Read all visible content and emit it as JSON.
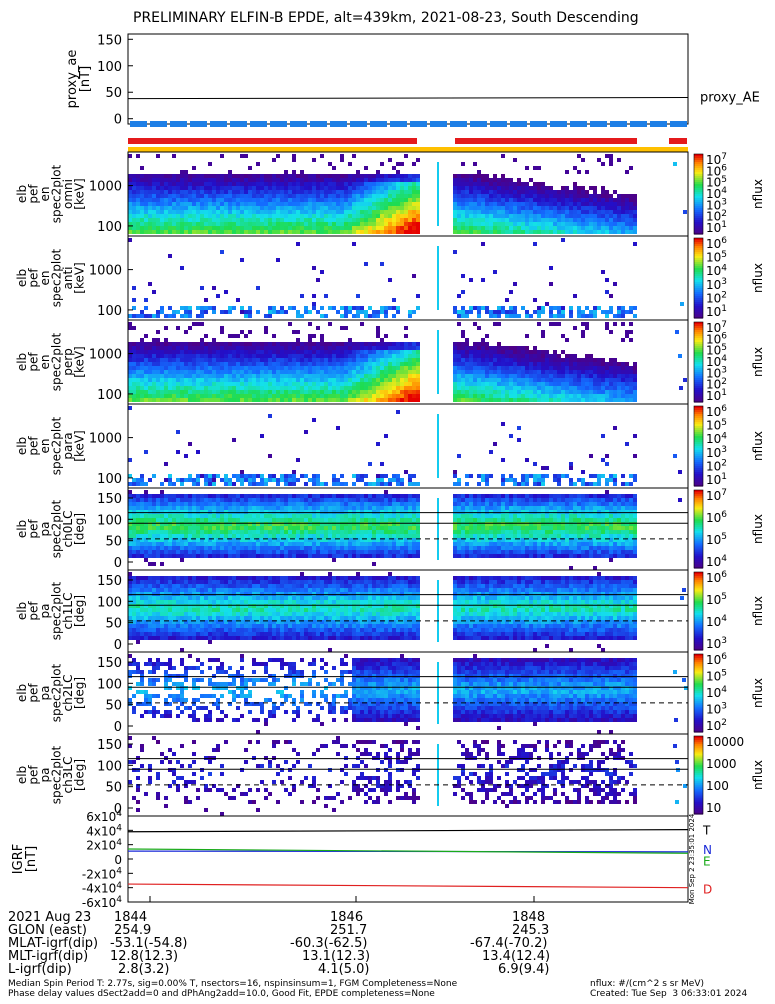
{
  "title": "PRELIMINARY ELFIN-B EPDE, alt=439km, 2021-08-23, South Descending",
  "colors": {
    "red": "#e41a1c",
    "blue": "#1e7fe6",
    "yellow": "#ffc000",
    "black": "#000000",
    "igrf_green": "#1aaa1a",
    "igrf_blue": "#1a2ad8",
    "igrf_red": "#e02020"
  },
  "chart_data": [
    {
      "type": "line",
      "ylabel": "proxy_ae\n[nT]",
      "yticks": [
        "150",
        "100",
        "50",
        "0"
      ],
      "ylim": [
        -10,
        160
      ],
      "series": [
        {
          "name": "proxy_AE",
          "x": [
            "1842:40",
            "1850:00"
          ],
          "y": [
            38,
            40
          ]
        }
      ]
    },
    {
      "type": "heatmap",
      "ylabel": [
        "elb",
        "pef",
        "en",
        "spec2plot",
        "omni",
        "[keV]"
      ],
      "yticks": [
        "1000",
        "100"
      ],
      "colorbar_ticks": [
        "10^7",
        "10^6",
        "10^5",
        "10^4",
        "10^3",
        "10^2",
        "10^1"
      ],
      "colorbar_label": "nflux"
    },
    {
      "type": "heatmap",
      "ylabel": [
        "elb",
        "pef",
        "en",
        "spec2plot",
        "anti",
        "[keV]"
      ],
      "yticks": [
        "1000",
        "100"
      ],
      "colorbar_ticks": [
        "10^6",
        "10^5",
        "10^4",
        "10^3",
        "10^2",
        "10^1"
      ],
      "colorbar_label": "nflux"
    },
    {
      "type": "heatmap",
      "ylabel": [
        "elb",
        "pef",
        "en",
        "spec2plot",
        "perp",
        "[keV]"
      ],
      "yticks": [
        "1000",
        "100"
      ],
      "colorbar_ticks": [
        "10^7",
        "10^6",
        "10^5",
        "10^4",
        "10^3",
        "10^2",
        "10^1"
      ],
      "colorbar_label": "nflux"
    },
    {
      "type": "heatmap",
      "ylabel": [
        "elb",
        "pef",
        "en",
        "spec2plot",
        "para",
        "[keV]"
      ],
      "yticks": [
        "1000",
        "100"
      ],
      "colorbar_ticks": [
        "10^6",
        "10^5",
        "10^4",
        "10^3",
        "10^2",
        "10^1"
      ],
      "colorbar_label": "nflux"
    },
    {
      "type": "heatmap",
      "ylabel": [
        "elb",
        "pef",
        "pa",
        "spec2plot",
        "ch0LC",
        "[deg]"
      ],
      "yticks": [
        "150",
        "100",
        "50",
        "0"
      ],
      "colorbar_ticks": [
        "10^7",
        "10^6",
        "10^5",
        "10^4"
      ],
      "colorbar_label": "nflux"
    },
    {
      "type": "heatmap",
      "ylabel": [
        "elb",
        "pef",
        "pa",
        "spec2plot",
        "ch1LC",
        "[deg]"
      ],
      "yticks": [
        "150",
        "100",
        "50",
        "0"
      ],
      "colorbar_ticks": [
        "10^6",
        "10^5",
        "10^4",
        "10^3"
      ],
      "colorbar_label": "nflux"
    },
    {
      "type": "heatmap",
      "ylabel": [
        "elb",
        "pef",
        "pa",
        "spec2plot",
        "ch2LC",
        "[deg]"
      ],
      "yticks": [
        "150",
        "100",
        "50",
        "0"
      ],
      "colorbar_ticks": [
        "10^6",
        "10^5",
        "10^4",
        "10^3",
        "10^2"
      ],
      "colorbar_label": "nflux"
    },
    {
      "type": "heatmap",
      "ylabel": [
        "elb",
        "pef",
        "pa",
        "spec2plot",
        "ch3LC",
        "[deg]"
      ],
      "yticks": [
        "150",
        "100",
        "50",
        "0"
      ],
      "colorbar_ticks": [
        "10000",
        "1000",
        "100",
        "10"
      ],
      "colorbar_label": "nflux"
    },
    {
      "type": "line",
      "ylabel": [
        "IGRF",
        "[nT]"
      ],
      "yticks": [
        "6x10^4",
        "4x10^4",
        "2x10^4",
        "0",
        "-2x10^4",
        "-4x10^4",
        "-6x10^4"
      ],
      "ylim": [
        -60000,
        60000
      ],
      "series": [
        {
          "name": "T",
          "x": [
            "1842:40",
            "1849:55"
          ],
          "y": [
            38000,
            41000
          ]
        },
        {
          "name": "N",
          "x": [
            "1842:40",
            "1849:55"
          ],
          "y": [
            11000,
            10000
          ]
        },
        {
          "name": "E",
          "x": [
            "1842:40",
            "1849:55"
          ],
          "y": [
            14000,
            8000
          ]
        },
        {
          "name": "D",
          "x": [
            "1842:40",
            "1849:55"
          ],
          "y": [
            -35000,
            -40000
          ]
        }
      ],
      "rotated_label": "Mon Sep  2 23:35:01 2024"
    }
  ],
  "footer": {
    "rows": [
      [
        "2021 Aug 23",
        "1844",
        "1846",
        "1848"
      ],
      [
        "GLON (east)",
        "254.9",
        "251.7",
        "245.3"
      ],
      [
        "MLAT-igrf(dip)",
        "-53.1(-54.8)",
        "-60.3(-62.5)",
        "-67.4(-70.2)"
      ],
      [
        "MLT-igrf(dip)",
        "12.8(12.3)",
        "13.1(12.3)",
        "13.4(12.4)"
      ],
      [
        "L-igrf(dip)",
        "2.8(3.2)",
        "4.1(5.0)",
        "6.9(9.4)"
      ]
    ],
    "note1": "Median Spin Period T: 2.77s, sig=0.00% T, nsectors=16, nspinsinsum=1, FGM Completeness=None",
    "note2": "Phase delay values dSect2add=0 and dPhAng2add=10.0, Good Fit, EPDE completeness=None",
    "units": "nflux: #/(cm^2 s sr MeV)",
    "created": "Created: Tue Sep  3 06:33:01 2024"
  }
}
